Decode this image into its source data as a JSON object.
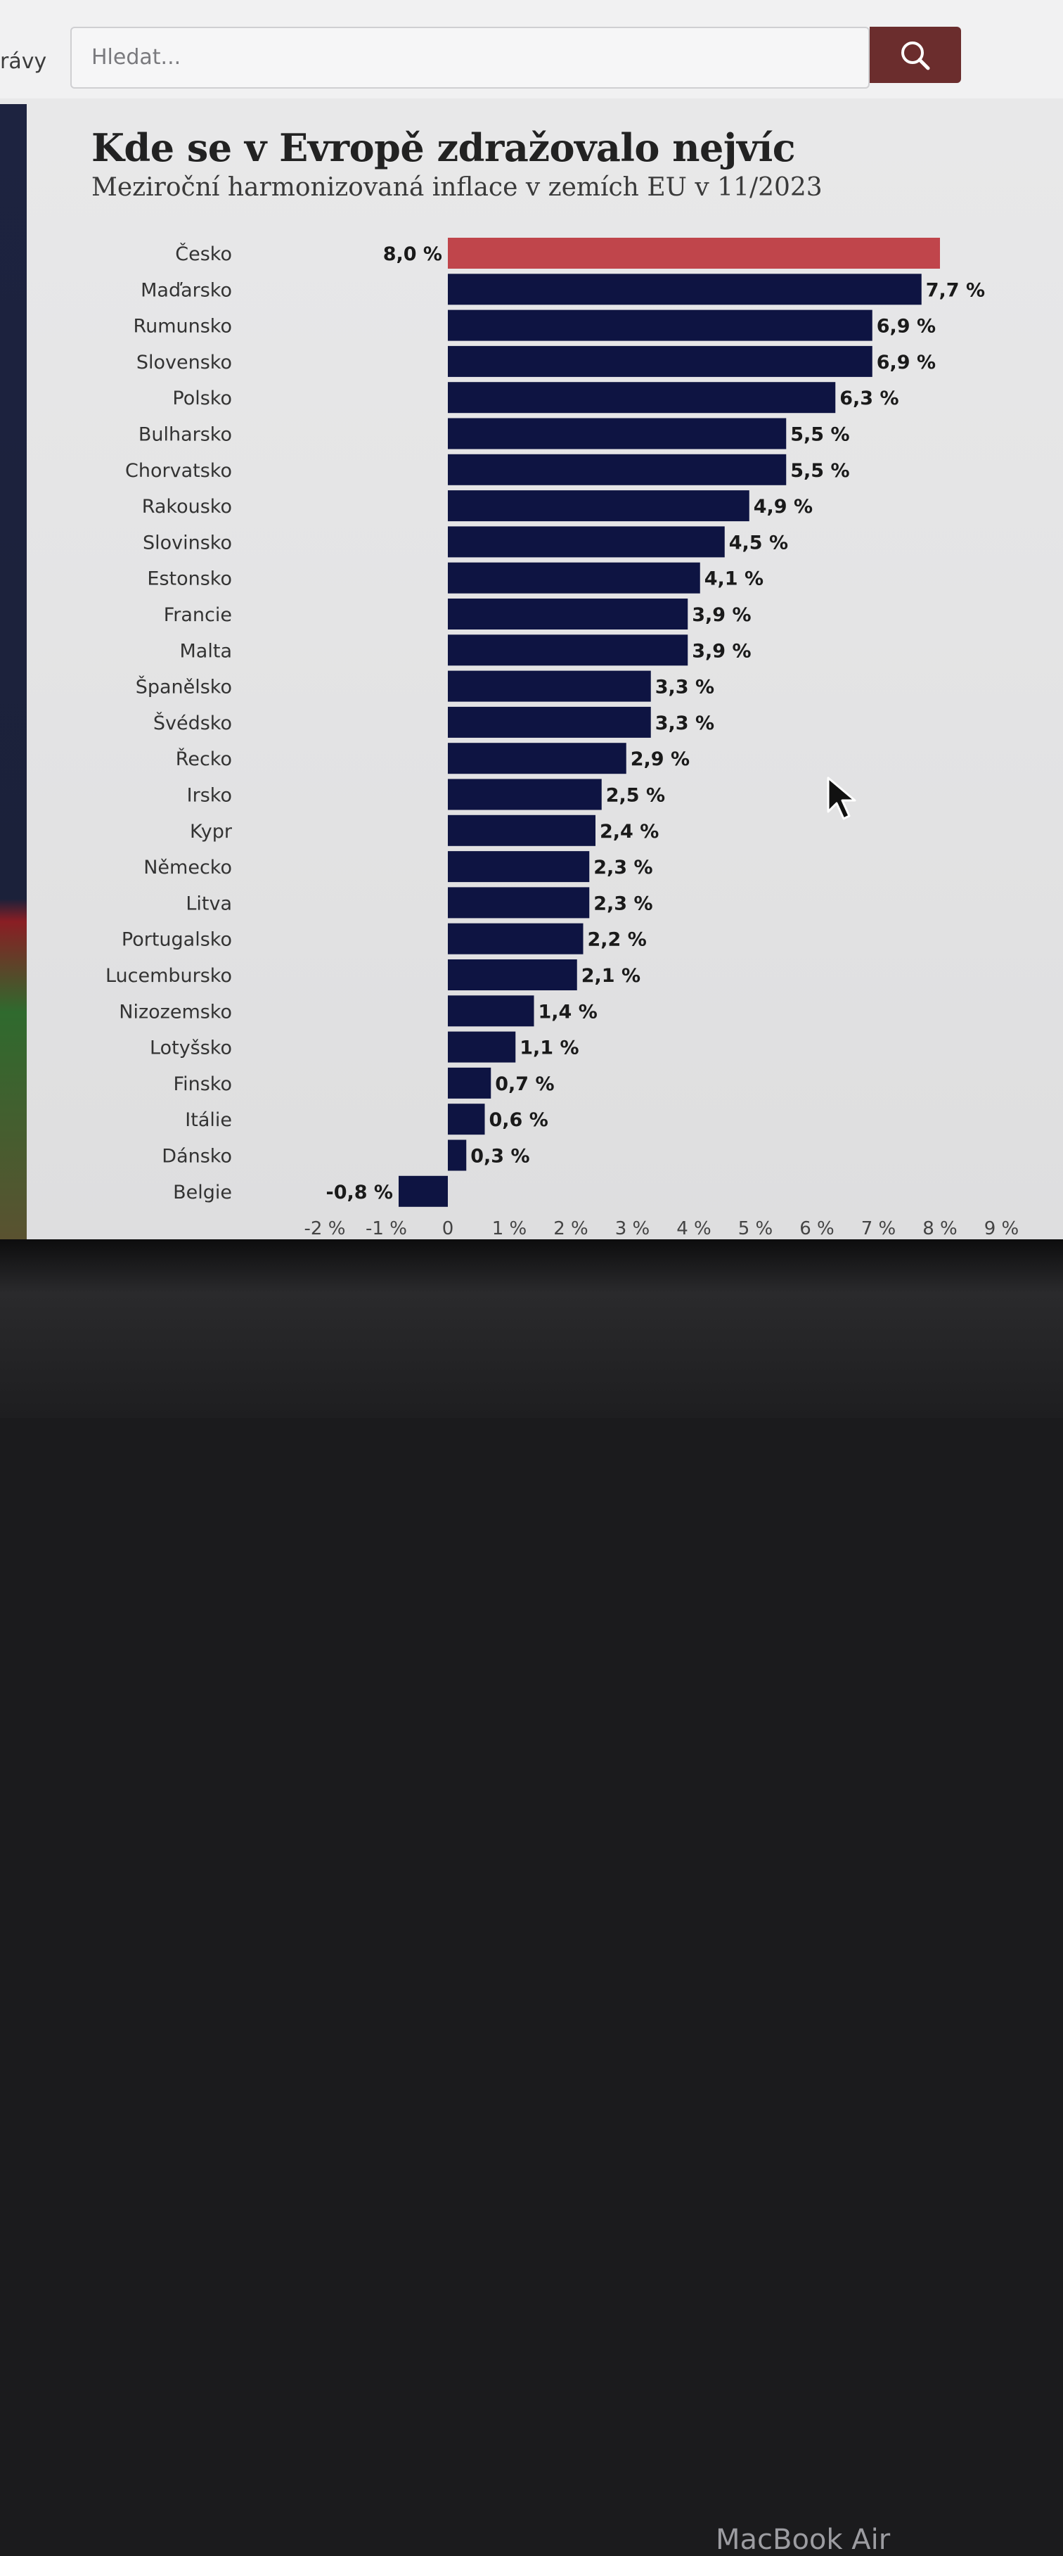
{
  "header": {
    "nav_fragment": "rávy",
    "search_placeholder": "Hledat...",
    "search_icon": "search-icon"
  },
  "device": {
    "brand": "MacBook Air"
  },
  "colors": {
    "highlight": "#c0454b",
    "bar": "#0e1442",
    "search_button": "#6b2d2d"
  },
  "chart_data": {
    "type": "bar",
    "orientation": "horizontal",
    "title": "Kde se v Evropě zdražovalo nejvíc",
    "subtitle": "Meziroční harmonizovaná inflace v zemích EU v 11/2023",
    "categories": [
      "Česko",
      "Maďarsko",
      "Rumunsko",
      "Slovensko",
      "Polsko",
      "Bulharsko",
      "Chorvatsko",
      "Rakousko",
      "Slovinsko",
      "Estonsko",
      "Francie",
      "Malta",
      "Španělsko",
      "Švédsko",
      "Řecko",
      "Irsko",
      "Kypr",
      "Německo",
      "Litva",
      "Portugalsko",
      "Lucembursko",
      "Nizozemsko",
      "Lotyšsko",
      "Finsko",
      "Itálie",
      "Dánsko",
      "Belgie"
    ],
    "values": [
      8.0,
      7.7,
      6.9,
      6.9,
      6.3,
      5.5,
      5.5,
      4.9,
      4.5,
      4.1,
      3.9,
      3.9,
      3.3,
      3.3,
      2.9,
      2.5,
      2.4,
      2.3,
      2.3,
      2.2,
      2.1,
      1.4,
      1.1,
      0.7,
      0.6,
      0.3,
      -0.8
    ],
    "value_labels": [
      "8,0 %",
      "7,7 %",
      "6,9 %",
      "6,9 %",
      "6,3 %",
      "5,5 %",
      "5,5 %",
      "4,9 %",
      "4,5 %",
      "4,1 %",
      "3,9 %",
      "3,9 %",
      "3,3 %",
      "3,3 %",
      "2,9 %",
      "2,5 %",
      "2,4 %",
      "2,3 %",
      "2,3 %",
      "2,2 %",
      "2,1 %",
      "1,4 %",
      "1,1 %",
      "0,7 %",
      "0,6 %",
      "0,3 %",
      "-0,8 %"
    ],
    "highlight_category": "Česko",
    "x_ticks": [
      -2,
      -1,
      0,
      1,
      2,
      3,
      4,
      5,
      6,
      7,
      8,
      9
    ],
    "x_tick_labels": [
      "-2 %",
      "-1 %",
      "0",
      "1 %",
      "2 %",
      "3 %",
      "4 %",
      "5 %",
      "6 %",
      "7 %",
      "8 %",
      "9 %"
    ],
    "xlim": [
      -2,
      9
    ],
    "grid": false,
    "legend": "none"
  }
}
